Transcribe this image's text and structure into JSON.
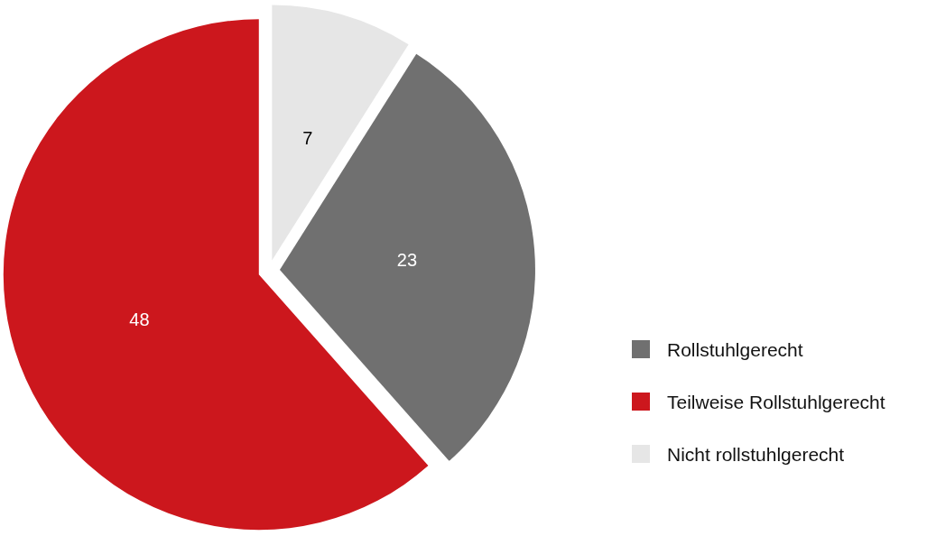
{
  "chart_data": {
    "type": "pie",
    "categories": [
      "Rollstuhlgerecht",
      "Teilweise Rollstuhlgerecht",
      "Nicht rollstuhlgerecht"
    ],
    "values": [
      23,
      48,
      7
    ],
    "colors": [
      "#707070",
      "#cc171d",
      "#e6e6e6"
    ],
    "data_labels": true,
    "legend": "right"
  }
}
